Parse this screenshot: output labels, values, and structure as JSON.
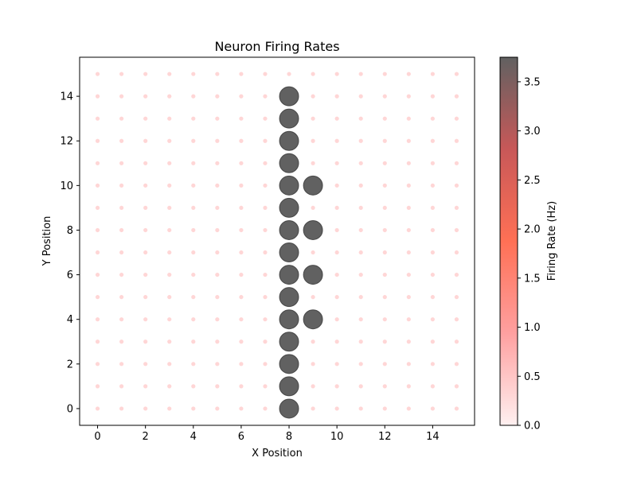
{
  "chart_data": {
    "type": "scatter",
    "title": "Neuron Firing Rates",
    "xlabel": "X Position",
    "ylabel": "Y Position",
    "xlim": [
      -0.75,
      15.75
    ],
    "ylim": [
      -0.75,
      15.75
    ],
    "xticks": [
      0,
      2,
      4,
      6,
      8,
      10,
      12,
      14
    ],
    "yticks": [
      0,
      2,
      4,
      6,
      8,
      10,
      12,
      14
    ],
    "xtick_labels": [
      "0",
      "2",
      "4",
      "6",
      "8",
      "10",
      "12",
      "14"
    ],
    "ytick_labels": [
      "0",
      "2",
      "4",
      "6",
      "8",
      "10",
      "12",
      "14"
    ],
    "grid": false,
    "grid_size": 16,
    "baseline_rate": 0.0,
    "active_neurons": [
      {
        "x": 8,
        "y": 0,
        "rate": 3.75
      },
      {
        "x": 8,
        "y": 1,
        "rate": 3.75
      },
      {
        "x": 8,
        "y": 2,
        "rate": 3.75
      },
      {
        "x": 8,
        "y": 3,
        "rate": 3.75
      },
      {
        "x": 8,
        "y": 4,
        "rate": 3.75
      },
      {
        "x": 8,
        "y": 5,
        "rate": 3.75
      },
      {
        "x": 8,
        "y": 6,
        "rate": 3.75
      },
      {
        "x": 8,
        "y": 7,
        "rate": 3.75
      },
      {
        "x": 8,
        "y": 8,
        "rate": 3.75
      },
      {
        "x": 8,
        "y": 9,
        "rate": 3.75
      },
      {
        "x": 8,
        "y": 10,
        "rate": 3.75
      },
      {
        "x": 8,
        "y": 11,
        "rate": 3.75
      },
      {
        "x": 8,
        "y": 12,
        "rate": 3.75
      },
      {
        "x": 8,
        "y": 13,
        "rate": 3.75
      },
      {
        "x": 8,
        "y": 14,
        "rate": 3.75
      },
      {
        "x": 9,
        "y": 4,
        "rate": 3.75
      },
      {
        "x": 9,
        "y": 6,
        "rate": 3.75
      },
      {
        "x": 9,
        "y": 8,
        "rate": 3.75
      },
      {
        "x": 9,
        "y": 10,
        "rate": 3.75
      }
    ],
    "colorbar": {
      "label": "Firing Rate (Hz)",
      "range": [
        0.0,
        3.75
      ],
      "ticks": [
        0.0,
        0.5,
        1.0,
        1.5,
        2.0,
        2.5,
        3.0,
        3.5
      ],
      "tick_labels": [
        "0.0",
        "0.5",
        "1.0",
        "1.5",
        "2.0",
        "2.5",
        "3.0",
        "3.5"
      ],
      "colors": [
        "#fff0f0",
        "#ffa0a0",
        "#ff7055",
        "#c85858",
        "#616161"
      ]
    },
    "marker_alpha": 0.6
  }
}
